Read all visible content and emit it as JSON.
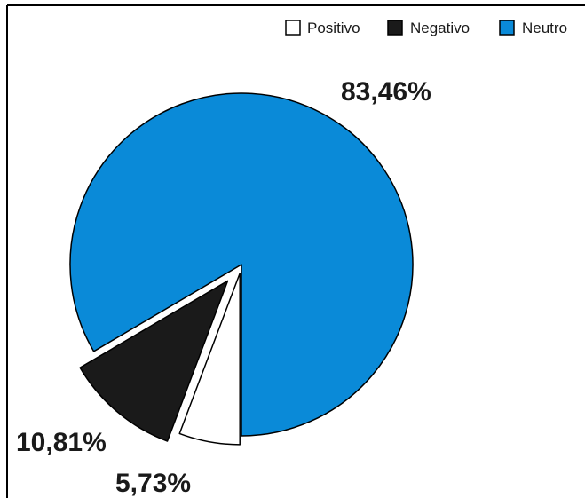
{
  "chart_data": {
    "type": "pie",
    "categories": [
      "Positivo",
      "Negativo",
      "Neutro"
    ],
    "values": [
      5.73,
      10.81,
      83.46
    ],
    "value_labels": [
      "5,73%",
      "10,81%",
      "83,46%"
    ],
    "colors": [
      "#ffffff",
      "#1a1a1a",
      "#0a8ad8"
    ],
    "legend": {
      "placement": "top-right",
      "entries": [
        "Positivo",
        "Negativo",
        "Neutro"
      ]
    },
    "title": "",
    "exploded_slices": [
      "Positivo",
      "Negativo"
    ]
  }
}
